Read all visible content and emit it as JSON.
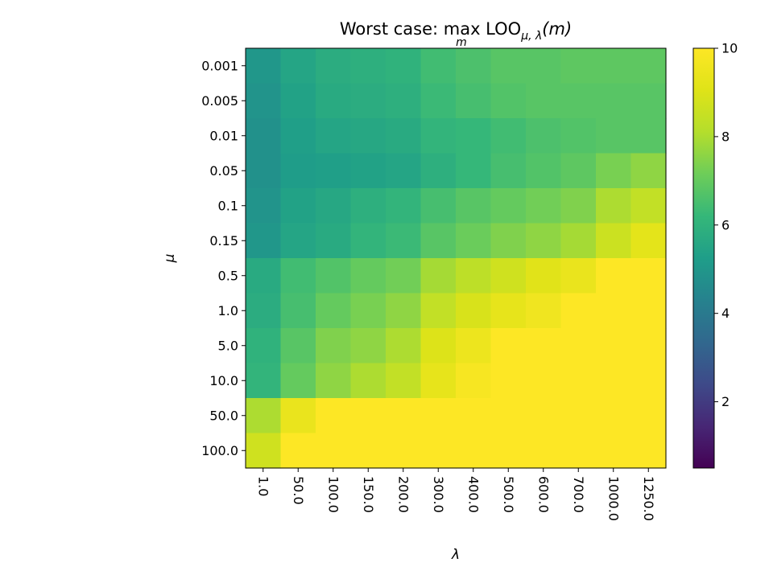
{
  "chart_data": {
    "type": "heatmap",
    "title": "Worst case: max LOO",
    "title_operator_subscript": "m",
    "title_loo_subscript": "μ, λ",
    "title_argument": "(m)",
    "xlabel": "λ",
    "ylabel": "μ",
    "x_categories": [
      "1.0",
      "50.0",
      "100.0",
      "150.0",
      "200.0",
      "300.0",
      "400.0",
      "500.0",
      "600.0",
      "700.0",
      "1000.0",
      "1250.0"
    ],
    "y_categories": [
      "0.001",
      "0.005",
      "0.01",
      "0.05",
      "0.1",
      "0.15",
      "0.5",
      "1.0",
      "5.0",
      "10.0",
      "50.0",
      "100.0"
    ],
    "values": [
      [
        5.0,
        5.5,
        5.8,
        5.9,
        6.0,
        6.4,
        6.6,
        6.8,
        6.8,
        6.9,
        6.9,
        6.9
      ],
      [
        4.9,
        5.4,
        5.7,
        5.8,
        5.9,
        6.3,
        6.5,
        6.7,
        6.8,
        6.8,
        6.8,
        6.8
      ],
      [
        4.8,
        5.3,
        5.5,
        5.6,
        5.7,
        6.1,
        6.2,
        6.4,
        6.6,
        6.7,
        6.8,
        6.8
      ],
      [
        4.8,
        5.2,
        5.3,
        5.4,
        5.5,
        5.9,
        6.2,
        6.5,
        6.7,
        6.9,
        7.3,
        7.6
      ],
      [
        4.9,
        5.4,
        5.6,
        5.9,
        6.1,
        6.5,
        6.8,
        7.0,
        7.2,
        7.4,
        8.0,
        8.4
      ],
      [
        5.0,
        5.5,
        5.7,
        6.1,
        6.3,
        6.8,
        7.1,
        7.4,
        7.6,
        7.9,
        8.6,
        9.2
      ],
      [
        5.7,
        6.4,
        6.7,
        7.0,
        7.2,
        7.9,
        8.3,
        8.7,
        9.1,
        9.4,
        10.0,
        10.0
      ],
      [
        5.8,
        6.5,
        7.0,
        7.3,
        7.6,
        8.4,
        8.9,
        9.3,
        9.6,
        10.0,
        10.0,
        10.0
      ],
      [
        6.0,
        6.8,
        7.4,
        7.6,
        8.0,
        9.0,
        9.5,
        10.0,
        10.0,
        10.0,
        10.0,
        10.0
      ],
      [
        6.1,
        7.0,
        7.6,
        8.0,
        8.4,
        9.3,
        9.8,
        10.0,
        10.0,
        10.0,
        10.0,
        10.0
      ],
      [
        8.0,
        9.4,
        10.0,
        10.0,
        10.0,
        10.0,
        10.0,
        10.0,
        10.0,
        10.0,
        10.0,
        10.0
      ],
      [
        8.7,
        10.0,
        10.0,
        10.0,
        10.0,
        10.0,
        10.0,
        10.0,
        10.0,
        10.0,
        10.0,
        10.0
      ]
    ],
    "colorscale": "viridis",
    "vmin": 0.5,
    "vmax": 10,
    "colorbar_ticks": [
      2,
      4,
      6,
      8,
      10
    ],
    "x_tick_rotation": "rotated -90°",
    "legend": "colorbar at right"
  }
}
